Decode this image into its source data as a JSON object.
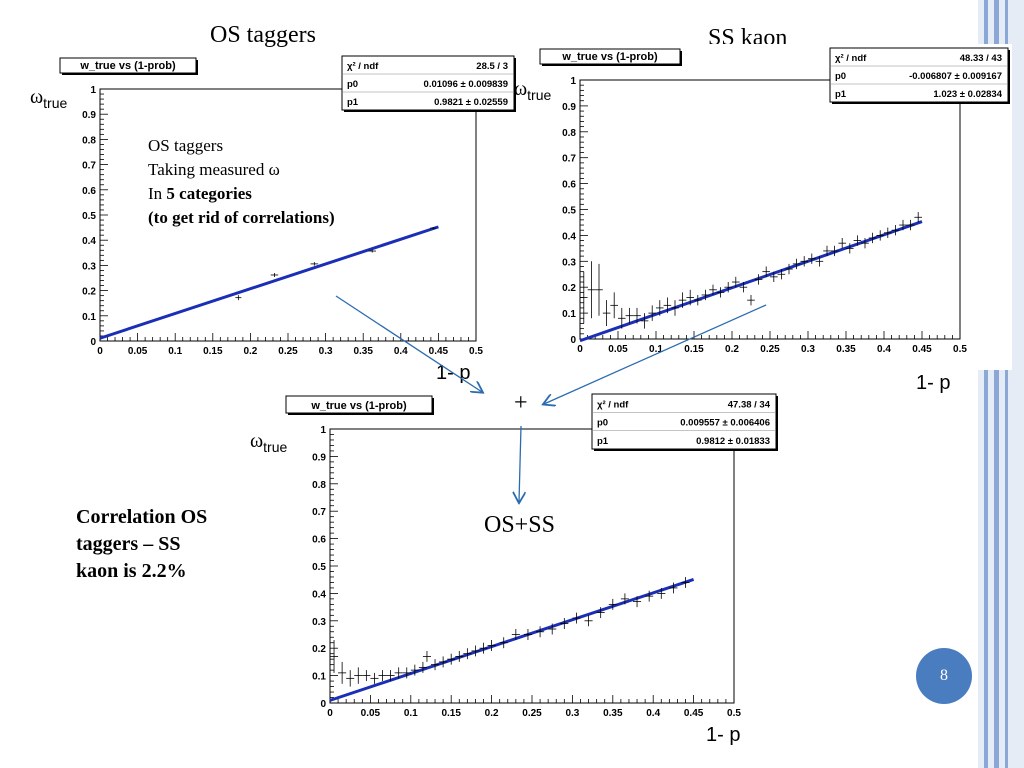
{
  "slide": {
    "page_number": "8",
    "titles": {
      "os": "OS taggers",
      "ss": "SS kaon",
      "combined": "OS+SS"
    },
    "plus_sign": "+",
    "axis_y": {
      "symbol": "ω",
      "subscript": "true"
    },
    "axis_x": "1- p",
    "os_note": {
      "line1": "OS taggers",
      "line2": "Taking measured ω",
      "line3_prefix": "In ",
      "line3_bold": "5 categories",
      "line4": "(to get rid of correlations)"
    },
    "correlation_note": {
      "line1": "Correlation OS",
      "line2": "taggers – SS",
      "line3": "kaon is 2.2%"
    },
    "colors": {
      "fit_line": "#1a2fb5",
      "accent_blue": "#4a7cc0",
      "stripe_blue": "#7f9fd0",
      "arrow": "#2b6cb0"
    }
  },
  "chart_data": [
    {
      "type": "scatter",
      "title": "w_true vs (1-prob)",
      "xlim": [
        0,
        0.5
      ],
      "ylim": [
        0,
        1
      ],
      "x_ticks": [
        "0",
        "0.05",
        "0.1",
        "0.15",
        "0.2",
        "0.25",
        "0.3",
        "0.35",
        "0.4",
        "0.45",
        "0.5"
      ],
      "y_ticks": [
        "0",
        "0.1",
        "0.2",
        "0.3",
        "0.4",
        "0.5",
        "0.6",
        "0.7",
        "0.8",
        "0.9",
        "1"
      ],
      "fit": {
        "p0": 0.01096,
        "p1": 0.9821,
        "x_end": 0.45
      },
      "stats": [
        {
          "name": "χ² / ndf",
          "value": "28.5 / 3"
        },
        {
          "name": "p0",
          "value": "0.01096 ± 0.009839"
        },
        {
          "name": "p1",
          "value": "0.9821 ± 0.02559"
        }
      ],
      "points": [
        {
          "x": 0.184,
          "y": 0.172,
          "ex": 0.004,
          "ey": 0.01
        },
        {
          "x": 0.232,
          "y": 0.262,
          "ex": 0.005,
          "ey": 0.008
        },
        {
          "x": 0.285,
          "y": 0.306,
          "ex": 0.005,
          "ey": 0.007
        },
        {
          "x": 0.362,
          "y": 0.357,
          "ex": 0.005,
          "ey": 0.006
        },
        {
          "x": 0.443,
          "y": 0.448,
          "ex": 0.004,
          "ey": 0.004
        }
      ]
    },
    {
      "type": "scatter",
      "title": "w_true vs (1-prob)",
      "xlim": [
        0,
        0.5
      ],
      "ylim": [
        0,
        1
      ],
      "x_ticks": [
        "0",
        "0.05",
        "0.1",
        "0.15",
        "0.2",
        "0.25",
        "0.3",
        "0.35",
        "0.4",
        "0.45",
        "0.5"
      ],
      "y_ticks": [
        "0",
        "0.1",
        "0.2",
        "0.3",
        "0.4",
        "0.5",
        "0.6",
        "0.7",
        "0.8",
        "0.9",
        "1"
      ],
      "fit": {
        "p0": -0.006807,
        "p1": 1.023,
        "x_end": 0.45
      },
      "stats": [
        {
          "name": "χ² / ndf",
          "value": "48.33 / 43"
        },
        {
          "name": "p0",
          "value": "-0.006807 ± 0.009167"
        },
        {
          "name": "p1",
          "value": "1.023 ± 0.02834"
        }
      ],
      "points": [
        {
          "x": 0.005,
          "y": 0.16,
          "ex": 0.005,
          "ey": 0.1
        },
        {
          "x": 0.015,
          "y": 0.19,
          "ex": 0.005,
          "ey": 0.11
        },
        {
          "x": 0.025,
          "y": 0.19,
          "ex": 0.005,
          "ey": 0.1
        },
        {
          "x": 0.035,
          "y": 0.1,
          "ex": 0.005,
          "ey": 0.05
        },
        {
          "x": 0.045,
          "y": 0.13,
          "ex": 0.005,
          "ey": 0.05
        },
        {
          "x": 0.055,
          "y": 0.08,
          "ex": 0.005,
          "ey": 0.04
        },
        {
          "x": 0.065,
          "y": 0.09,
          "ex": 0.005,
          "ey": 0.03
        },
        {
          "x": 0.075,
          "y": 0.09,
          "ex": 0.005,
          "ey": 0.03
        },
        {
          "x": 0.085,
          "y": 0.07,
          "ex": 0.005,
          "ey": 0.03
        },
        {
          "x": 0.095,
          "y": 0.1,
          "ex": 0.005,
          "ey": 0.03
        },
        {
          "x": 0.105,
          "y": 0.12,
          "ex": 0.005,
          "ey": 0.03
        },
        {
          "x": 0.115,
          "y": 0.13,
          "ex": 0.005,
          "ey": 0.03
        },
        {
          "x": 0.125,
          "y": 0.12,
          "ex": 0.005,
          "ey": 0.03
        },
        {
          "x": 0.135,
          "y": 0.15,
          "ex": 0.005,
          "ey": 0.03
        },
        {
          "x": 0.145,
          "y": 0.16,
          "ex": 0.005,
          "ey": 0.03
        },
        {
          "x": 0.155,
          "y": 0.15,
          "ex": 0.005,
          "ey": 0.02
        },
        {
          "x": 0.165,
          "y": 0.17,
          "ex": 0.005,
          "ey": 0.02
        },
        {
          "x": 0.175,
          "y": 0.19,
          "ex": 0.005,
          "ey": 0.02
        },
        {
          "x": 0.185,
          "y": 0.18,
          "ex": 0.005,
          "ey": 0.02
        },
        {
          "x": 0.195,
          "y": 0.2,
          "ex": 0.005,
          "ey": 0.02
        },
        {
          "x": 0.205,
          "y": 0.22,
          "ex": 0.005,
          "ey": 0.02
        },
        {
          "x": 0.215,
          "y": 0.2,
          "ex": 0.005,
          "ey": 0.02
        },
        {
          "x": 0.225,
          "y": 0.15,
          "ex": 0.005,
          "ey": 0.02
        },
        {
          "x": 0.235,
          "y": 0.23,
          "ex": 0.005,
          "ey": 0.02
        },
        {
          "x": 0.245,
          "y": 0.26,
          "ex": 0.005,
          "ey": 0.02
        },
        {
          "x": 0.255,
          "y": 0.24,
          "ex": 0.005,
          "ey": 0.02
        },
        {
          "x": 0.265,
          "y": 0.25,
          "ex": 0.005,
          "ey": 0.02
        },
        {
          "x": 0.275,
          "y": 0.27,
          "ex": 0.005,
          "ey": 0.02
        },
        {
          "x": 0.285,
          "y": 0.29,
          "ex": 0.005,
          "ey": 0.02
        },
        {
          "x": 0.295,
          "y": 0.3,
          "ex": 0.005,
          "ey": 0.02
        },
        {
          "x": 0.305,
          "y": 0.31,
          "ex": 0.005,
          "ey": 0.02
        },
        {
          "x": 0.315,
          "y": 0.3,
          "ex": 0.005,
          "ey": 0.02
        },
        {
          "x": 0.325,
          "y": 0.34,
          "ex": 0.005,
          "ey": 0.02
        },
        {
          "x": 0.335,
          "y": 0.34,
          "ex": 0.005,
          "ey": 0.02
        },
        {
          "x": 0.345,
          "y": 0.37,
          "ex": 0.005,
          "ey": 0.02
        },
        {
          "x": 0.355,
          "y": 0.35,
          "ex": 0.005,
          "ey": 0.02
        },
        {
          "x": 0.365,
          "y": 0.38,
          "ex": 0.005,
          "ey": 0.02
        },
        {
          "x": 0.375,
          "y": 0.37,
          "ex": 0.005,
          "ey": 0.02
        },
        {
          "x": 0.385,
          "y": 0.39,
          "ex": 0.005,
          "ey": 0.02
        },
        {
          "x": 0.395,
          "y": 0.4,
          "ex": 0.005,
          "ey": 0.02
        },
        {
          "x": 0.405,
          "y": 0.41,
          "ex": 0.005,
          "ey": 0.02
        },
        {
          "x": 0.415,
          "y": 0.42,
          "ex": 0.005,
          "ey": 0.02
        },
        {
          "x": 0.425,
          "y": 0.44,
          "ex": 0.005,
          "ey": 0.02
        },
        {
          "x": 0.435,
          "y": 0.44,
          "ex": 0.005,
          "ey": 0.02
        },
        {
          "x": 0.445,
          "y": 0.47,
          "ex": 0.005,
          "ey": 0.02
        }
      ]
    },
    {
      "type": "scatter",
      "title": "w_true vs (1-prob)",
      "xlim": [
        0,
        0.5
      ],
      "ylim": [
        0,
        1
      ],
      "x_ticks": [
        "0",
        "0.05",
        "0.1",
        "0.15",
        "0.2",
        "0.25",
        "0.3",
        "0.35",
        "0.4",
        "0.45",
        "0.5"
      ],
      "y_ticks": [
        "0",
        "0.1",
        "0.2",
        "0.3",
        "0.4",
        "0.5",
        "0.6",
        "0.7",
        "0.8",
        "0.9",
        "1"
      ],
      "fit": {
        "p0": 0.009557,
        "p1": 0.9812,
        "x_end": 0.45
      },
      "stats": [
        {
          "name": "χ² / ndf",
          "value": "47.38 / 34"
        },
        {
          "name": "p0",
          "value": "0.009557 ± 0.006406"
        },
        {
          "name": "p1",
          "value": "0.9812 ± 0.01833"
        }
      ],
      "points": [
        {
          "x": 0.005,
          "y": 0.17,
          "ex": 0.005,
          "ey": 0.06
        },
        {
          "x": 0.015,
          "y": 0.11,
          "ex": 0.005,
          "ey": 0.04
        },
        {
          "x": 0.025,
          "y": 0.09,
          "ex": 0.005,
          "ey": 0.03
        },
        {
          "x": 0.035,
          "y": 0.1,
          "ex": 0.005,
          "ey": 0.03
        },
        {
          "x": 0.045,
          "y": 0.1,
          "ex": 0.005,
          "ey": 0.02
        },
        {
          "x": 0.055,
          "y": 0.09,
          "ex": 0.005,
          "ey": 0.02
        },
        {
          "x": 0.065,
          "y": 0.1,
          "ex": 0.005,
          "ey": 0.02
        },
        {
          "x": 0.075,
          "y": 0.1,
          "ex": 0.005,
          "ey": 0.02
        },
        {
          "x": 0.085,
          "y": 0.11,
          "ex": 0.005,
          "ey": 0.02
        },
        {
          "x": 0.095,
          "y": 0.11,
          "ex": 0.005,
          "ey": 0.02
        },
        {
          "x": 0.105,
          "y": 0.12,
          "ex": 0.005,
          "ey": 0.02
        },
        {
          "x": 0.115,
          "y": 0.13,
          "ex": 0.005,
          "ey": 0.02
        },
        {
          "x": 0.12,
          "y": 0.17,
          "ex": 0.005,
          "ey": 0.02
        },
        {
          "x": 0.13,
          "y": 0.14,
          "ex": 0.005,
          "ey": 0.02
        },
        {
          "x": 0.14,
          "y": 0.15,
          "ex": 0.005,
          "ey": 0.02
        },
        {
          "x": 0.15,
          "y": 0.16,
          "ex": 0.005,
          "ey": 0.02
        },
        {
          "x": 0.16,
          "y": 0.17,
          "ex": 0.005,
          "ey": 0.02
        },
        {
          "x": 0.17,
          "y": 0.18,
          "ex": 0.005,
          "ey": 0.02
        },
        {
          "x": 0.18,
          "y": 0.19,
          "ex": 0.005,
          "ey": 0.02
        },
        {
          "x": 0.19,
          "y": 0.2,
          "ex": 0.005,
          "ey": 0.02
        },
        {
          "x": 0.2,
          "y": 0.21,
          "ex": 0.005,
          "ey": 0.02
        },
        {
          "x": 0.215,
          "y": 0.22,
          "ex": 0.005,
          "ey": 0.02
        },
        {
          "x": 0.23,
          "y": 0.25,
          "ex": 0.005,
          "ey": 0.02
        },
        {
          "x": 0.245,
          "y": 0.25,
          "ex": 0.005,
          "ey": 0.02
        },
        {
          "x": 0.26,
          "y": 0.26,
          "ex": 0.005,
          "ey": 0.02
        },
        {
          "x": 0.275,
          "y": 0.27,
          "ex": 0.005,
          "ey": 0.02
        },
        {
          "x": 0.29,
          "y": 0.29,
          "ex": 0.005,
          "ey": 0.02
        },
        {
          "x": 0.305,
          "y": 0.31,
          "ex": 0.005,
          "ey": 0.02
        },
        {
          "x": 0.32,
          "y": 0.3,
          "ex": 0.005,
          "ey": 0.02
        },
        {
          "x": 0.335,
          "y": 0.33,
          "ex": 0.005,
          "ey": 0.02
        },
        {
          "x": 0.35,
          "y": 0.36,
          "ex": 0.005,
          "ey": 0.02
        },
        {
          "x": 0.365,
          "y": 0.38,
          "ex": 0.005,
          "ey": 0.02
        },
        {
          "x": 0.38,
          "y": 0.37,
          "ex": 0.005,
          "ey": 0.02
        },
        {
          "x": 0.395,
          "y": 0.39,
          "ex": 0.005,
          "ey": 0.02
        },
        {
          "x": 0.41,
          "y": 0.4,
          "ex": 0.005,
          "ey": 0.02
        },
        {
          "x": 0.425,
          "y": 0.42,
          "ex": 0.005,
          "ey": 0.02
        },
        {
          "x": 0.44,
          "y": 0.44,
          "ex": 0.005,
          "ey": 0.02
        }
      ]
    }
  ]
}
